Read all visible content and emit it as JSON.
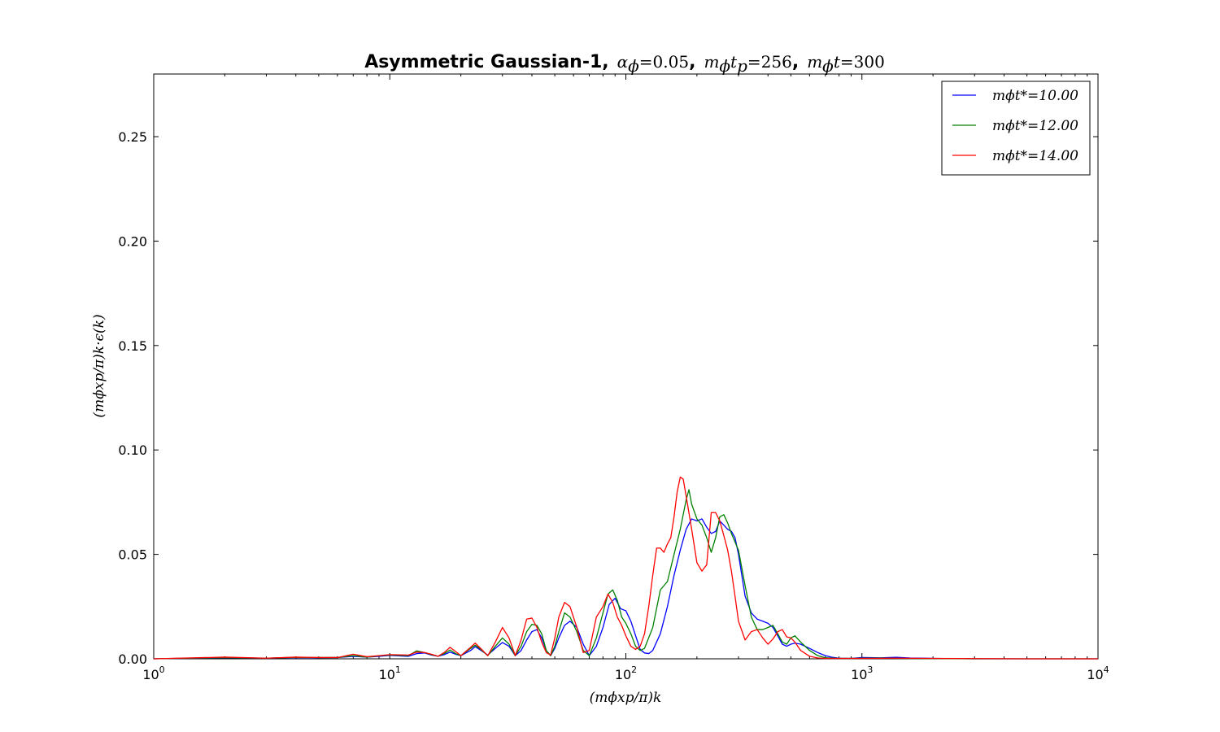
{
  "chart_data": {
    "type": "line",
    "title": {
      "bold": "Asymmetric Gaussian-1,",
      "math1": "α",
      "math1_sub": "ϕ",
      "math1_val": "=0.05",
      "sep1": ",",
      "math2": "m",
      "math2_sub": "ϕ",
      "math2_t": "t",
      "math2_tsub": "p",
      "math2_val": "=256",
      "sep2": ",",
      "math3": "m",
      "math3_sub": "ϕ",
      "math3_t": "t",
      "math3_val": "=300"
    },
    "xlabel": "(mϕxp/π)k",
    "ylabel": "(mϕxp/π)k·ϵ(k)",
    "x_scale": "log",
    "xlim": [
      1,
      10000
    ],
    "ylim": [
      0,
      0.28
    ],
    "x_ticks": [
      1,
      10,
      100,
      1000,
      10000
    ],
    "x_tick_labels": [
      {
        "base": "10",
        "exp": "0"
      },
      {
        "base": "10",
        "exp": "1"
      },
      {
        "base": "10",
        "exp": "2"
      },
      {
        "base": "10",
        "exp": "3"
      },
      {
        "base": "10",
        "exp": "4"
      }
    ],
    "y_ticks": [
      0.0,
      0.05,
      0.1,
      0.15,
      0.2,
      0.25
    ],
    "y_tick_labels": [
      "0.00",
      "0.05",
      "0.10",
      "0.15",
      "0.20",
      "0.25"
    ],
    "grid": false,
    "legend_position": "top-right",
    "series": [
      {
        "name": "mϕt*=10.00",
        "color": "#0000ff",
        "x": [
          1,
          2,
          3,
          4,
          5,
          6,
          7,
          8,
          9,
          10,
          12,
          13,
          14,
          15,
          16,
          17,
          18,
          19,
          20,
          22,
          23,
          24,
          26,
          28,
          30,
          32,
          34,
          36,
          38,
          40,
          42,
          44,
          46,
          48,
          50,
          52,
          55,
          58,
          62,
          66,
          70,
          75,
          80,
          85,
          90,
          95,
          100,
          105,
          110,
          115,
          120,
          125,
          130,
          140,
          150,
          160,
          170,
          180,
          190,
          200,
          210,
          220,
          230,
          240,
          250,
          260,
          270,
          280,
          290,
          300,
          320,
          340,
          360,
          380,
          400,
          420,
          440,
          460,
          480,
          500,
          520,
          550,
          600,
          650,
          700,
          750,
          800,
          900,
          1000,
          1200,
          1400,
          1600,
          2000,
          3000,
          5000,
          10000
        ],
        "values": [
          0.0,
          0.0005,
          0.0003,
          0.0006,
          0.0005,
          0.0006,
          0.0012,
          0.0008,
          0.0012,
          0.0016,
          0.0012,
          0.0025,
          0.0028,
          0.0018,
          0.0012,
          0.002,
          0.0032,
          0.0022,
          0.0015,
          0.004,
          0.0058,
          0.0045,
          0.0018,
          0.005,
          0.0078,
          0.006,
          0.0015,
          0.004,
          0.009,
          0.013,
          0.014,
          0.01,
          0.004,
          0.0015,
          0.005,
          0.01,
          0.016,
          0.018,
          0.015,
          0.007,
          0.0015,
          0.006,
          0.015,
          0.026,
          0.029,
          0.024,
          0.023,
          0.018,
          0.011,
          0.0045,
          0.0028,
          0.0025,
          0.004,
          0.012,
          0.025,
          0.04,
          0.052,
          0.062,
          0.067,
          0.066,
          0.067,
          0.063,
          0.06,
          0.061,
          0.066,
          0.064,
          0.062,
          0.061,
          0.058,
          0.05,
          0.03,
          0.022,
          0.019,
          0.018,
          0.017,
          0.015,
          0.011,
          0.007,
          0.006,
          0.007,
          0.0075,
          0.007,
          0.005,
          0.003,
          0.0015,
          0.0007,
          0.0003,
          0.0002,
          0.0006,
          0.0005,
          0.0007,
          0.0004,
          0.0002,
          0.0,
          0.0,
          0.0
        ]
      },
      {
        "name": "mϕt*=12.00",
        "color": "#008000",
        "x": [
          1,
          2,
          3,
          4,
          5,
          6,
          7,
          8,
          9,
          10,
          12,
          13,
          14,
          15,
          16,
          17,
          18,
          19,
          20,
          22,
          23,
          24,
          26,
          28,
          30,
          32,
          34,
          36,
          38,
          40,
          42,
          44,
          46,
          48,
          50,
          52,
          55,
          58,
          62,
          66,
          70,
          75,
          80,
          84,
          88,
          92,
          96,
          100,
          105,
          110,
          115,
          120,
          130,
          140,
          150,
          160,
          170,
          180,
          185,
          190,
          200,
          210,
          220,
          230,
          240,
          250,
          260,
          270,
          280,
          300,
          320,
          340,
          360,
          380,
          400,
          420,
          440,
          460,
          480,
          500,
          520,
          550,
          600,
          650,
          700,
          800,
          900,
          1000,
          1200,
          1400,
          2000,
          3000,
          5000,
          10000
        ],
        "values": [
          0.0,
          0.0006,
          0.0003,
          0.0007,
          0.0006,
          0.0006,
          0.0015,
          0.0008,
          0.0014,
          0.0018,
          0.0015,
          0.0038,
          0.003,
          0.002,
          0.0012,
          0.0025,
          0.0042,
          0.0025,
          0.0015,
          0.005,
          0.0065,
          0.005,
          0.0015,
          0.006,
          0.01,
          0.007,
          0.0015,
          0.006,
          0.013,
          0.0165,
          0.016,
          0.012,
          0.004,
          0.0015,
          0.006,
          0.013,
          0.022,
          0.02,
          0.013,
          0.004,
          0.0015,
          0.01,
          0.022,
          0.031,
          0.033,
          0.028,
          0.02,
          0.017,
          0.012,
          0.006,
          0.004,
          0.005,
          0.015,
          0.033,
          0.037,
          0.05,
          0.062,
          0.076,
          0.081,
          0.074,
          0.067,
          0.064,
          0.058,
          0.051,
          0.058,
          0.068,
          0.069,
          0.065,
          0.06,
          0.052,
          0.035,
          0.02,
          0.014,
          0.014,
          0.015,
          0.016,
          0.012,
          0.008,
          0.007,
          0.01,
          0.011,
          0.008,
          0.004,
          0.0015,
          0.0005,
          0.0002,
          0.0002,
          0.0003,
          0.0004,
          0.0002,
          0.0001,
          0.0,
          0.0,
          0.0
        ]
      },
      {
        "name": "mϕt*=14.00",
        "color": "#ff0000",
        "x": [
          1,
          2,
          3,
          4,
          5,
          6,
          7,
          8,
          9,
          10,
          12,
          13,
          14,
          15,
          16,
          17,
          18,
          19,
          20,
          22,
          23,
          24,
          26,
          28,
          30,
          32,
          34,
          36,
          38,
          40,
          42,
          44,
          46,
          48,
          50,
          52,
          55,
          58,
          62,
          66,
          70,
          75,
          80,
          84,
          88,
          92,
          96,
          100,
          105,
          110,
          115,
          120,
          125,
          130,
          135,
          140,
          145,
          150,
          155,
          160,
          165,
          170,
          175,
          180,
          190,
          200,
          210,
          220,
          230,
          240,
          250,
          260,
          270,
          280,
          290,
          300,
          320,
          340,
          360,
          380,
          400,
          420,
          440,
          460,
          480,
          500,
          520,
          550,
          600,
          650,
          700,
          800,
          1000,
          1400,
          2000,
          5000,
          10000
        ],
        "values": [
          0.0,
          0.0008,
          0.0003,
          0.0008,
          0.0006,
          0.0006,
          0.0022,
          0.001,
          0.0015,
          0.002,
          0.0018,
          0.0032,
          0.003,
          0.0022,
          0.0012,
          0.003,
          0.0055,
          0.0035,
          0.0015,
          0.0055,
          0.0075,
          0.0055,
          0.0015,
          0.008,
          0.015,
          0.01,
          0.0015,
          0.009,
          0.019,
          0.0195,
          0.015,
          0.008,
          0.003,
          0.0018,
          0.01,
          0.02,
          0.027,
          0.025,
          0.015,
          0.003,
          0.004,
          0.02,
          0.025,
          0.031,
          0.027,
          0.02,
          0.016,
          0.011,
          0.006,
          0.0045,
          0.006,
          0.012,
          0.025,
          0.04,
          0.053,
          0.053,
          0.051,
          0.055,
          0.058,
          0.068,
          0.08,
          0.087,
          0.086,
          0.078,
          0.062,
          0.046,
          0.042,
          0.045,
          0.07,
          0.07,
          0.066,
          0.059,
          0.052,
          0.042,
          0.03,
          0.018,
          0.009,
          0.013,
          0.014,
          0.01,
          0.007,
          0.0095,
          0.013,
          0.014,
          0.0105,
          0.01,
          0.008,
          0.004,
          0.0012,
          0.0004,
          0.0002,
          0.0002,
          0.0002,
          0.0003,
          0.0002,
          0.0,
          0.0
        ]
      }
    ]
  }
}
